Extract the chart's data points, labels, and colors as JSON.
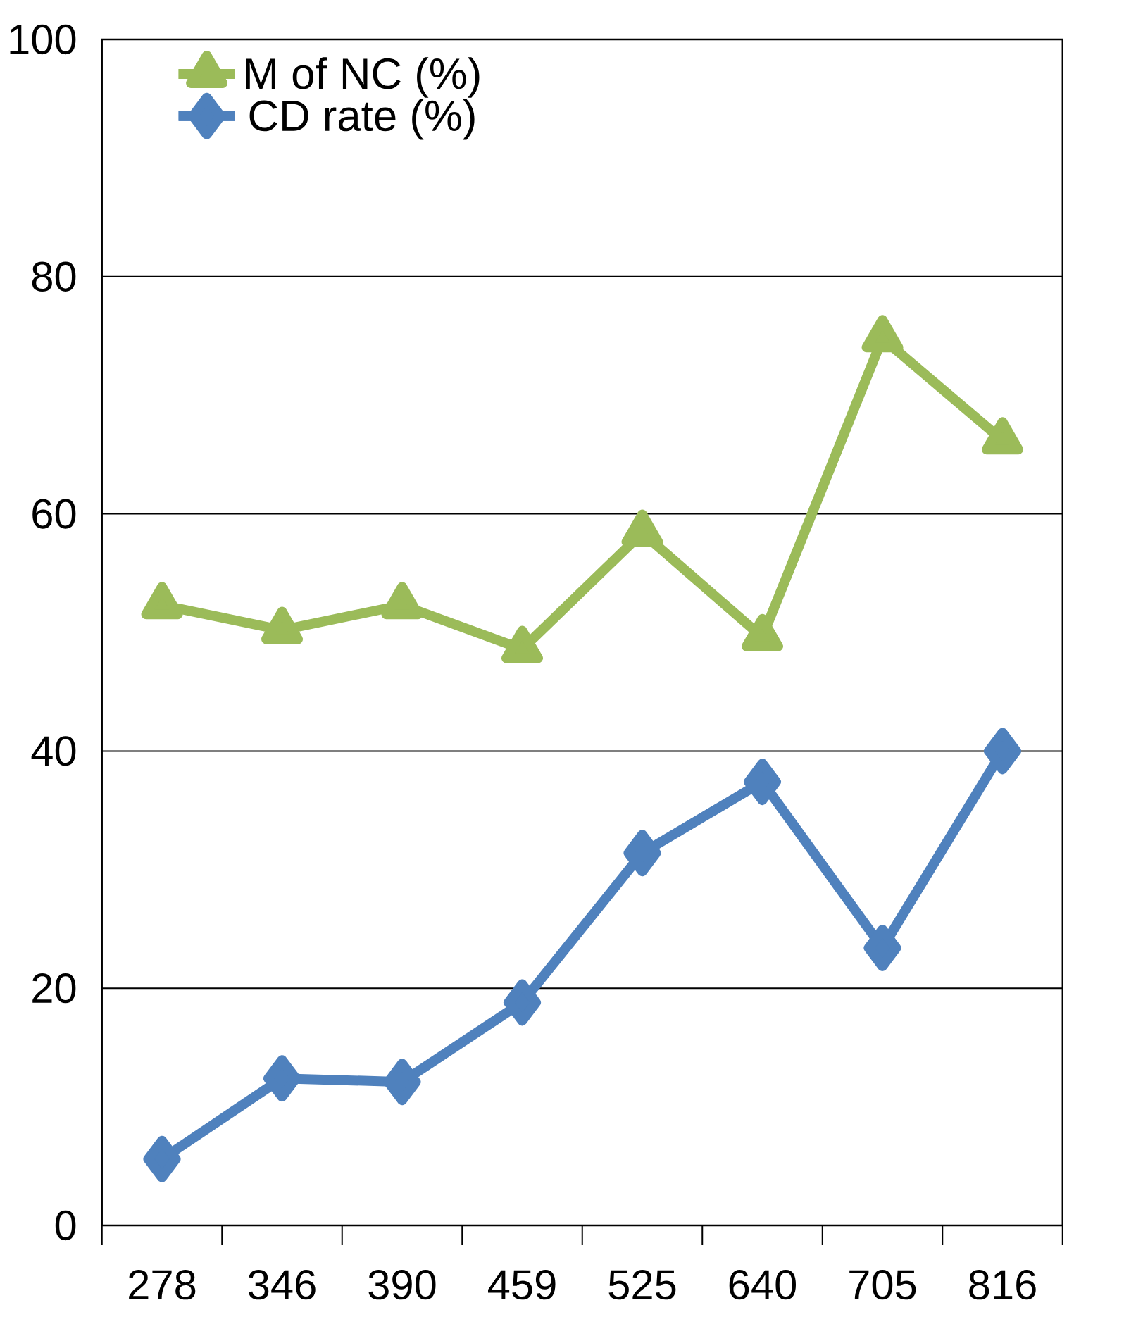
{
  "chart_data": {
    "type": "line",
    "categories": [
      "278",
      "346",
      "390",
      "459",
      "525",
      "640",
      "705",
      "816"
    ],
    "series": [
      {
        "name": "M of NC (%)",
        "color": "#9bbb59",
        "marker": "triangle",
        "values": [
          52.3,
          50.2,
          52.3,
          48.6,
          58.4,
          49.6,
          74.8,
          66.2
        ]
      },
      {
        "name": "CD rate (%)",
        "color": "#4f81bd",
        "marker": "diamond",
        "values": [
          5.6,
          12.4,
          12.1,
          18.8,
          31.4,
          37.4,
          23.4,
          40.0
        ]
      }
    ],
    "ylim": [
      0,
      100
    ],
    "yticks": [
      0,
      20,
      40,
      60,
      80,
      100
    ],
    "grid": "y",
    "legend": "top left",
    "line_style": "solid"
  }
}
